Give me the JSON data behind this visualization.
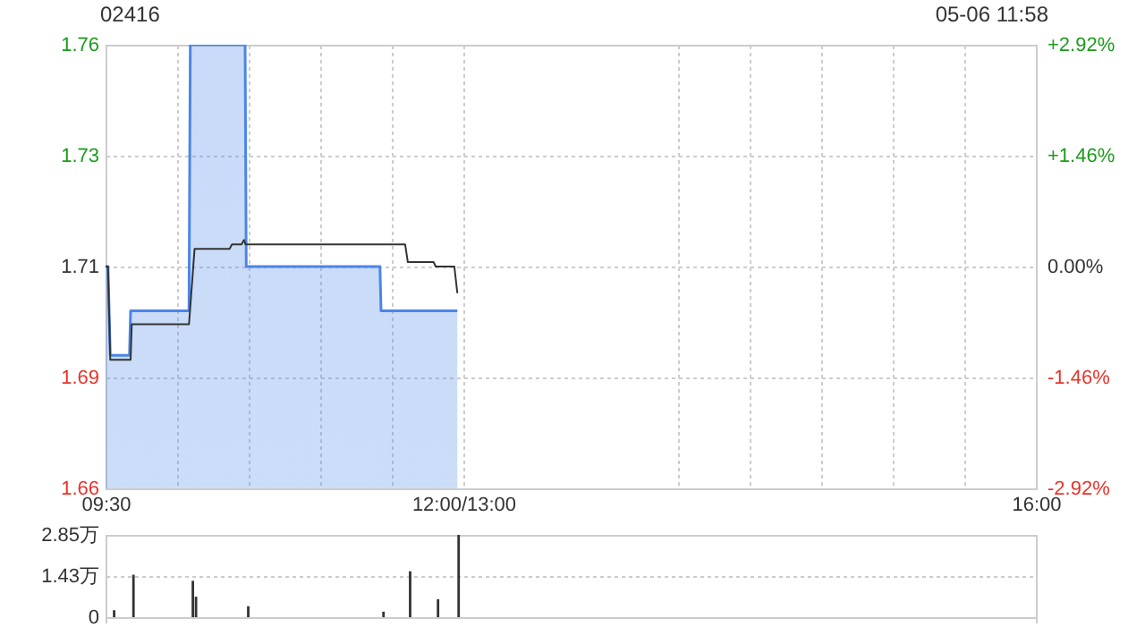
{
  "chart_data": [
    {
      "type": "line",
      "title": "02416",
      "annotations": [
        "05-06 11:58"
      ],
      "xlim": [
        9.5,
        16
      ],
      "xticks": [
        {
          "value": 9.5,
          "label": "09:30"
        },
        {
          "value": 10,
          "label": null
        },
        {
          "value": 10.5,
          "label": null
        },
        {
          "value": 11,
          "label": null
        },
        {
          "value": 11.5,
          "label": null
        },
        {
          "value": 12,
          "label": "12:00/13:00"
        },
        {
          "value": 13.5,
          "label": null
        },
        {
          "value": 14,
          "label": null
        },
        {
          "value": 14.5,
          "label": null
        },
        {
          "value": 15,
          "label": null
        },
        {
          "value": 15.5,
          "label": null
        },
        {
          "value": 16,
          "label": "16:00"
        }
      ],
      "ylim": [
        1.66,
        1.76
      ],
      "yticks": [
        1.66,
        {
          "value": 1.685,
          "label": "1.69"
        },
        1.71,
        {
          "value": 1.735,
          "label": "1.73"
        },
        1.76
      ],
      "y2lim": [
        -2.92,
        2.92
      ],
      "y2ticks": [
        {
          "value": -2.92,
          "label": "-2.92%"
        },
        {
          "value": -1.46,
          "label": "-1.46%"
        },
        {
          "value": 0,
          "label": "0.00%"
        },
        {
          "value": 1.46,
          "label": "+1.46%"
        },
        {
          "value": 2.92,
          "label": "+2.92%"
        }
      ],
      "grid": true,
      "series": [
        {
          "type": "area",
          "color": "#4a86e8",
          "x": [
            9.5,
            9.517,
            9.533,
            9.667,
            9.675,
            10.083,
            10.092,
            10.475,
            10.483,
            11.417,
            11.425,
            11.958
          ],
          "values": [
            1.71,
            1.71,
            1.69,
            1.69,
            1.7,
            1.7,
            1.76,
            1.76,
            1.71,
            1.71,
            1.7,
            1.7
          ]
        },
        {
          "type": "line",
          "color": "#333333",
          "x": [
            9.5,
            9.517,
            9.533,
            9.675,
            9.683,
            10.083,
            10.122,
            10.367,
            10.383,
            10.45,
            10.467,
            10.478,
            11.593,
            11.612,
            11.792,
            11.807,
            11.937,
            11.958
          ],
          "values": [
            1.71,
            1.71,
            1.689,
            1.689,
            1.697,
            1.697,
            1.714,
            1.714,
            1.715,
            1.715,
            1.716,
            1.715,
            1.715,
            1.711,
            1.711,
            1.71,
            1.71,
            1.704
          ]
        }
      ]
    },
    {
      "type": "bar",
      "xlim": [
        9.5,
        16
      ],
      "xticks": [
        9.5,
        16
      ],
      "ylim": [
        0,
        2.85
      ],
      "yticks": [
        0,
        {
          "value": 1.43,
          "label": "1.43万"
        },
        {
          "value": 2.85,
          "label": "2.85万"
        }
      ],
      "tick_labels": "y",
      "grid": "y",
      "series": [
        {
          "color": "#333333",
          "x": [
            9.56,
            9.695,
            10.11,
            10.132,
            10.497,
            11.442,
            11.628,
            11.823,
            11.967
          ],
          "values": [
            0.24,
            1.47,
            1.26,
            0.71,
            0.38,
            0.19,
            1.59,
            0.62,
            2.85
          ]
        }
      ]
    }
  ]
}
